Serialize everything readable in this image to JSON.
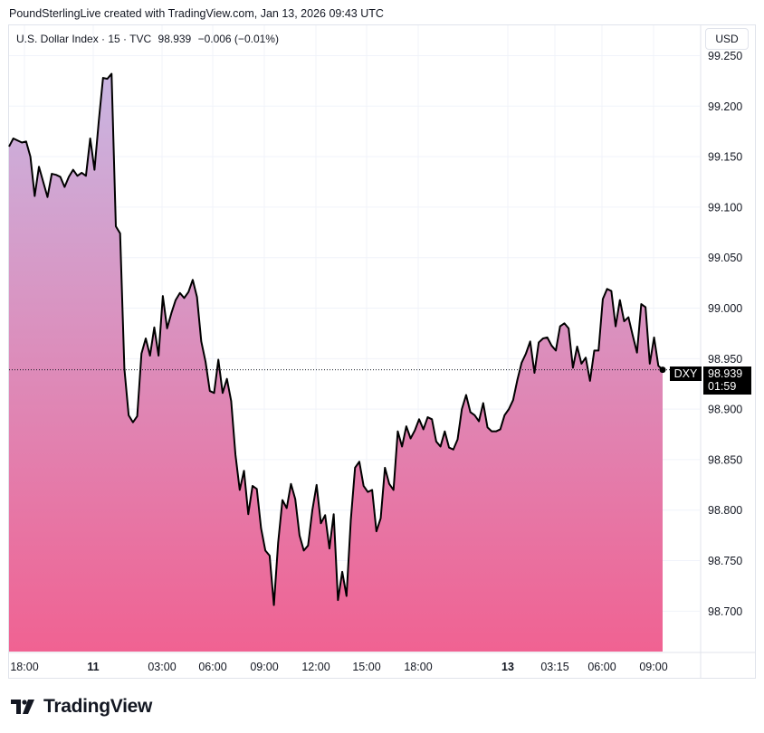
{
  "header": {
    "attribution": "PoundSterlingLive created with TradingView.com, Jan 13, 2026 09:43 UTC"
  },
  "legend": {
    "symbol": "U.S. Dollar Index · 15 · TVC",
    "last": "98.939",
    "change": "−0.006 (−0.01%)"
  },
  "currency_button": "USD",
  "price_tag": {
    "symbol": "DXY",
    "price": "98.939",
    "countdown": "01:59"
  },
  "brand": {
    "name": "TradingView"
  },
  "colors": {
    "line": "#000000",
    "fill_top": "#c9b6e2",
    "fill_bottom": "#f06292",
    "tag_bg": "#000000",
    "grid": "#f0f3fa"
  },
  "chart_data": {
    "type": "area",
    "title": "U.S. Dollar Index · 15 · TVC",
    "ylim": [
      98.66,
      99.28
    ],
    "y_ticks": [
      "99.250",
      "99.200",
      "99.150",
      "99.100",
      "99.050",
      "99.000",
      "98.950",
      "98.900",
      "98.850",
      "98.800",
      "98.750",
      "98.700"
    ],
    "x_ticks": [
      {
        "label": "18:00",
        "bold": false
      },
      {
        "label": "11",
        "bold": true
      },
      {
        "label": "03:00",
        "bold": false
      },
      {
        "label": "06:00",
        "bold": false
      },
      {
        "label": "09:00",
        "bold": false
      },
      {
        "label": "12:00",
        "bold": false
      },
      {
        "label": "15:00",
        "bold": false
      },
      {
        "label": "18:00",
        "bold": false
      },
      {
        "label": "13",
        "bold": true
      },
      {
        "label": "03:15",
        "bold": false
      },
      {
        "label": "06:00",
        "bold": false
      },
      {
        "label": "09:00",
        "bold": false
      }
    ],
    "series": [
      {
        "values": [
          99.16,
          99.168,
          99.166,
          99.164,
          99.165,
          99.15,
          99.111,
          99.14,
          99.125,
          99.11,
          99.133,
          99.132,
          99.13,
          99.12,
          99.13,
          99.137,
          99.131,
          99.134,
          99.131,
          99.168,
          99.137,
          99.185,
          99.228,
          99.227,
          99.232,
          99.081,
          99.074,
          98.94,
          98.894,
          98.887,
          98.893,
          98.955,
          98.97,
          98.953,
          98.981,
          98.953,
          99.012,
          98.98,
          98.995,
          99.008,
          99.015,
          99.01,
          99.016,
          99.028,
          99.011,
          98.967,
          98.947,
          98.918,
          98.916,
          98.949,
          98.916,
          98.93,
          98.908,
          98.855,
          98.82,
          98.839,
          98.796,
          98.824,
          98.821,
          98.782,
          98.76,
          98.755,
          98.706,
          98.768,
          98.81,
          98.802,
          98.826,
          98.811,
          98.775,
          98.76,
          98.765,
          98.8,
          98.825,
          98.787,
          98.795,
          98.762,
          98.796,
          98.711,
          98.739,
          98.715,
          98.79,
          98.842,
          98.848,
          98.824,
          98.818,
          98.82,
          98.779,
          98.792,
          98.842,
          98.826,
          98.82,
          98.878,
          98.863,
          98.883,
          98.871,
          98.879,
          98.89,
          98.88,
          98.892,
          98.89,
          98.868,
          98.863,
          98.878,
          98.862,
          98.86,
          98.87,
          98.9,
          98.914,
          98.897,
          98.894,
          98.888,
          98.906,
          98.882,
          98.878,
          98.878,
          98.88,
          98.894,
          98.9,
          98.909,
          98.929,
          98.946,
          98.955,
          98.967,
          98.936,
          98.966,
          98.97,
          98.971,
          98.963,
          98.958,
          98.982,
          98.985,
          98.98,
          98.941,
          98.962,
          98.945,
          98.951,
          98.928,
          98.958,
          98.958,
          99.009,
          99.019,
          99.017,
          98.982,
          99.008,
          98.987,
          98.991,
          98.973,
          98.956,
          99.004,
          99.001,
          98.945,
          98.971,
          98.943,
          98.939
        ]
      }
    ],
    "last_value": 98.939,
    "grid": true,
    "price_scale": "right"
  }
}
